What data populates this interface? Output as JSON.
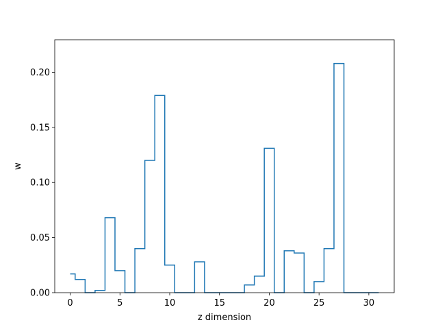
{
  "chart_data": {
    "type": "line",
    "drawstyle": "steps-mid",
    "title": "",
    "xlabel": "z dimension",
    "ylabel": "w",
    "xlim": [
      -1.55,
      32.55
    ],
    "ylim": [
      0,
      0.2295
    ],
    "xticks": [
      0,
      5,
      10,
      15,
      20,
      25,
      30
    ],
    "yticks": [
      0.0,
      0.05,
      0.1,
      0.15,
      0.2
    ],
    "ytick_labels": [
      "0.00",
      "0.05",
      "0.10",
      "0.15",
      "0.20"
    ],
    "line_color": "#1f77b4",
    "grid": false,
    "series": [
      {
        "x": [
          0,
          1,
          2,
          3,
          4,
          5,
          6,
          7,
          8,
          9,
          10,
          11,
          12,
          13,
          14,
          15,
          16,
          17,
          18,
          19,
          20,
          21,
          22,
          23,
          24,
          25,
          26,
          27,
          28,
          29,
          30,
          31
        ],
        "values": [
          0.017,
          0.012,
          0.0,
          0.002,
          0.068,
          0.02,
          0.0,
          0.04,
          0.12,
          0.179,
          0.025,
          0.0,
          0.0,
          0.028,
          0.0,
          0.0,
          0.0,
          0.0,
          0.007,
          0.015,
          0.131,
          0.0,
          0.038,
          0.036,
          0.0,
          0.01,
          0.04,
          0.208,
          0.0,
          0.0,
          0.0,
          0.0
        ]
      }
    ]
  }
}
